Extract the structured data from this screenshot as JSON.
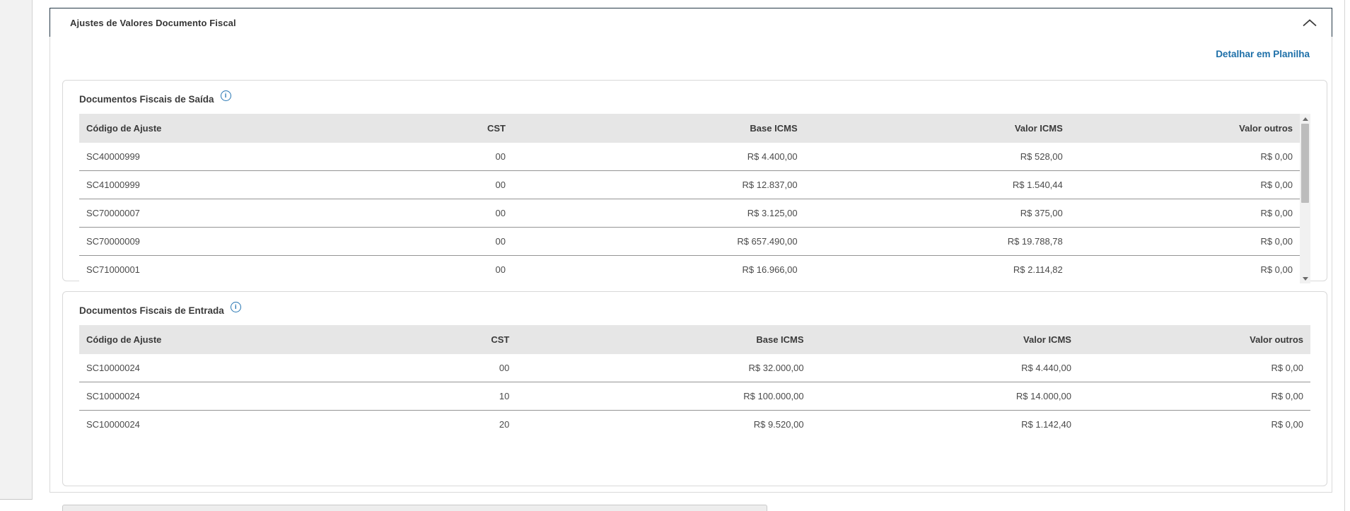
{
  "accordion": {
    "title": "Ajustes de Valores Documento Fiscal",
    "state": "expanded"
  },
  "panel": {
    "detail_link_label": "Detalhar em Planilha"
  },
  "tables": [
    {
      "title": "Documentos Fiscais de Saída",
      "columns": [
        "Código de Ajuste",
        "CST",
        "Base ICMS",
        "Valor ICMS",
        "Valor outros"
      ],
      "rows": [
        [
          "SC40000999",
          "00",
          "R$ 4.400,00",
          "R$ 528,00",
          "R$ 0,00"
        ],
        [
          "SC41000999",
          "00",
          "R$ 12.837,00",
          "R$ 1.540,44",
          "R$ 0,00"
        ],
        [
          "SC70000007",
          "00",
          "R$ 3.125,00",
          "R$ 375,00",
          "R$ 0,00"
        ],
        [
          "SC70000009",
          "00",
          "R$ 657.490,00",
          "R$ 19.788,78",
          "R$ 0,00"
        ],
        [
          "SC71000001",
          "00",
          "R$ 16.966,00",
          "R$ 2.114,82",
          "R$ 0,00"
        ]
      ],
      "has_scrollbar": true
    },
    {
      "title": "Documentos Fiscais de Entrada",
      "columns": [
        "Código de Ajuste",
        "CST",
        "Base ICMS",
        "Valor ICMS",
        "Valor outros"
      ],
      "rows": [
        [
          "SC10000024",
          "00",
          "R$ 32.000,00",
          "R$ 4.440,00",
          "R$ 0,00"
        ],
        [
          "SC10000024",
          "10",
          "R$ 100.000,00",
          "R$ 14.000,00",
          "R$ 0,00"
        ],
        [
          "SC10000024",
          "20",
          "R$ 9.520,00",
          "R$ 1.142,40",
          "R$ 0,00"
        ]
      ],
      "has_scrollbar": false
    }
  ],
  "icons": {
    "chevron_up": "collapse chevron (^)",
    "info": "i in circle"
  },
  "colors": {
    "accent_link_blue": "#1d6fa8",
    "info_icon_blue": "#2776b3",
    "accordion_border": "#243746",
    "table_header_bg": "#e6e6e6",
    "row_divider": "#949494",
    "card_border": "#d9d9d9",
    "scrollbar_thumb": "#bcbcbc"
  }
}
